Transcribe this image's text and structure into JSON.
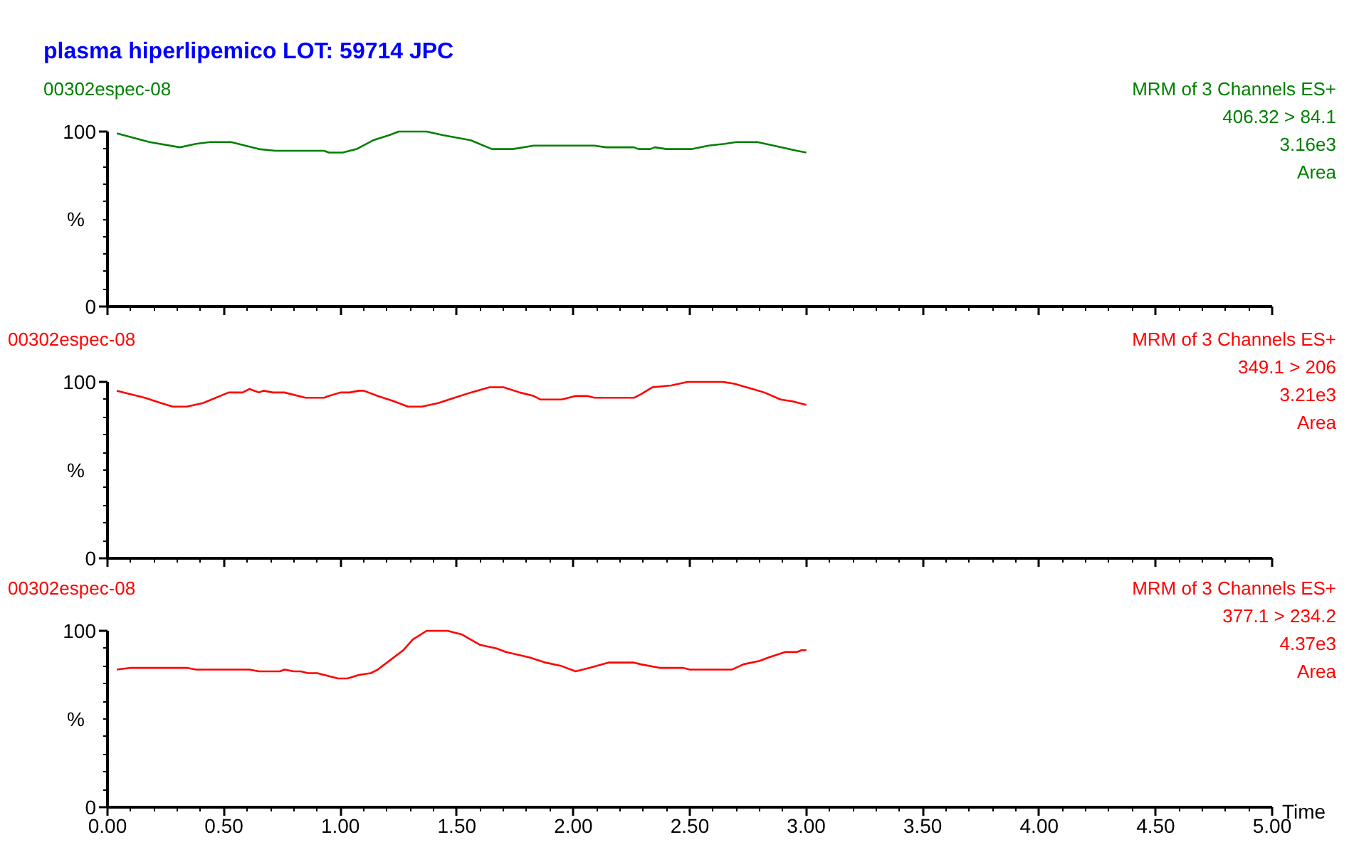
{
  "chart_data": [
    {
      "type": "line",
      "title": "plasma hiperlipemico LOT: 59714 JPC",
      "subtitle": "00302espec-08",
      "annotations": [
        "MRM of 3 Channels ES+",
        "406.32 > 84.1",
        "3.16e3",
        "Area"
      ],
      "x": [
        0.04,
        0.18,
        0.31,
        0.38,
        0.44,
        0.53,
        0.65,
        0.72,
        0.93,
        0.95,
        1.01,
        1.07,
        1.14,
        1.21,
        1.25,
        1.37,
        1.44,
        1.56,
        1.65,
        1.74,
        1.83,
        2.09,
        2.14,
        2.26,
        2.28,
        2.33,
        2.35,
        2.4,
        2.51,
        2.58,
        2.65,
        2.7,
        2.79,
        2.86,
        2.96,
        3.0
      ],
      "series": [
        {
          "color": "#008000",
          "values": [
            99,
            94,
            91,
            93,
            94,
            94,
            90,
            89,
            89,
            88,
            88,
            90,
            95,
            98,
            100,
            100,
            98,
            95,
            90,
            90,
            92,
            92,
            91,
            91,
            90,
            90,
            91,
            90,
            90,
            92,
            93,
            94,
            94,
            92,
            89,
            88
          ]
        }
      ],
      "xlim": [
        0,
        5
      ],
      "ylim": [
        0,
        100
      ],
      "xticks": [
        {
          "value": 0,
          "label": null
        },
        {
          "value": 0.5,
          "label": null
        },
        {
          "value": 1,
          "label": null
        },
        {
          "value": 1.5,
          "label": null
        },
        {
          "value": 2,
          "label": null
        },
        {
          "value": 2.5,
          "label": null
        },
        {
          "value": 3,
          "label": null
        },
        {
          "value": 3.5,
          "label": null
        },
        {
          "value": 4,
          "label": null
        },
        {
          "value": 4.5,
          "label": null
        },
        {
          "value": 5,
          "label": null
        }
      ],
      "yticks": [
        0,
        100
      ],
      "ylabel": "%",
      "tick_labels": "y"
    },
    {
      "type": "line",
      "subtitle": "00302espec-08",
      "annotations": [
        "MRM of 3 Channels ES+",
        "349.1 > 206",
        "3.21e3",
        "Area"
      ],
      "x": [
        0.04,
        0.16,
        0.23,
        0.28,
        0.34,
        0.41,
        0.52,
        0.58,
        0.61,
        0.65,
        0.67,
        0.71,
        0.76,
        0.85,
        0.93,
        0.95,
        1.0,
        1.04,
        1.08,
        1.1,
        1.16,
        1.23,
        1.29,
        1.35,
        1.42,
        1.49,
        1.56,
        1.64,
        1.7,
        1.77,
        1.83,
        1.86,
        1.95,
        2.01,
        2.06,
        2.09,
        2.26,
        2.29,
        2.34,
        2.42,
        2.49,
        2.56,
        2.64,
        2.69,
        2.77,
        2.82,
        2.89,
        2.94,
        3.0
      ],
      "series": [
        {
          "color": "#ff0000",
          "values": [
            95,
            91,
            88,
            86,
            86,
            88,
            94,
            94,
            96,
            94,
            95,
            94,
            94,
            91,
            91,
            92,
            94,
            94,
            95,
            95,
            92,
            89,
            86,
            86,
            88,
            91,
            94,
            97,
            97,
            94,
            92,
            90,
            90,
            92,
            92,
            91,
            91,
            93,
            97,
            98,
            100,
            100,
            100,
            99,
            96,
            94,
            90,
            89,
            87
          ]
        }
      ],
      "xlim": [
        0,
        5
      ],
      "ylim": [
        0,
        100
      ],
      "xticks": [
        {
          "value": 0,
          "label": null
        },
        {
          "value": 0.5,
          "label": null
        },
        {
          "value": 1,
          "label": null
        },
        {
          "value": 1.5,
          "label": null
        },
        {
          "value": 2,
          "label": null
        },
        {
          "value": 2.5,
          "label": null
        },
        {
          "value": 3,
          "label": null
        },
        {
          "value": 3.5,
          "label": null
        },
        {
          "value": 4,
          "label": null
        },
        {
          "value": 4.5,
          "label": null
        },
        {
          "value": 5,
          "label": null
        }
      ],
      "yticks": [
        0,
        100
      ],
      "ylabel": "%",
      "tick_labels": "y"
    },
    {
      "type": "line",
      "subtitle": "00302espec-08",
      "xlabel": "Time",
      "annotations": [
        "MRM of 3 Channels ES+",
        "377.1 > 234.2",
        "4.37e3",
        "Area"
      ],
      "x": [
        0.04,
        0.1,
        0.34,
        0.38,
        0.61,
        0.65,
        0.74,
        0.76,
        0.8,
        0.83,
        0.86,
        0.9,
        0.93,
        0.99,
        1.03,
        1.08,
        1.13,
        1.16,
        1.21,
        1.27,
        1.31,
        1.37,
        1.46,
        1.52,
        1.56,
        1.6,
        1.67,
        1.71,
        1.81,
        1.88,
        1.95,
        2.01,
        2.07,
        2.15,
        2.26,
        2.29,
        2.37,
        2.47,
        2.5,
        2.68,
        2.73,
        2.8,
        2.84,
        2.91,
        2.96,
        2.98,
        3.0
      ],
      "series": [
        {
          "color": "#ff0000",
          "values": [
            78,
            79,
            79,
            78,
            78,
            77,
            77,
            78,
            77,
            77,
            76,
            76,
            75,
            73,
            73,
            75,
            76,
            78,
            83,
            89,
            95,
            100,
            100,
            98,
            95,
            92,
            90,
            88,
            85,
            82,
            80,
            77,
            79,
            82,
            82,
            81,
            79,
            79,
            78,
            78,
            81,
            83,
            85,
            88,
            88,
            89,
            89
          ]
        }
      ],
      "xlim": [
        0,
        5
      ],
      "ylim": [
        0,
        100
      ],
      "xticks": [
        {
          "value": 0,
          "label": "0.00"
        },
        {
          "value": 0.5,
          "label": "0.50"
        },
        {
          "value": 1,
          "label": "1.00"
        },
        {
          "value": 1.5,
          "label": "1.50"
        },
        {
          "value": 2,
          "label": "2.00"
        },
        {
          "value": 2.5,
          "label": "2.50"
        },
        {
          "value": 3,
          "label": "3.00"
        },
        {
          "value": 3.5,
          "label": "3.50"
        },
        {
          "value": 4,
          "label": "4.00"
        },
        {
          "value": 4.5,
          "label": "4.50"
        },
        {
          "value": 5,
          "label": "5.00"
        }
      ],
      "yticks": [
        0,
        100
      ],
      "ylabel": "%"
    }
  ]
}
